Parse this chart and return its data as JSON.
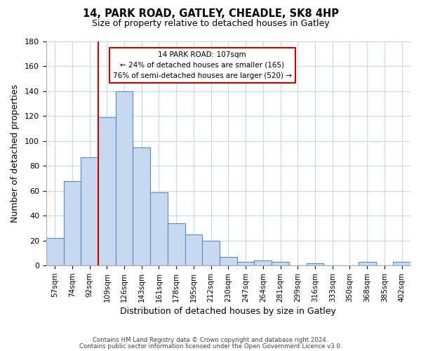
{
  "title_line1": "14, PARK ROAD, GATLEY, CHEADLE, SK8 4HP",
  "title_line2": "Size of property relative to detached houses in Gatley",
  "xlabel": "Distribution of detached houses by size in Gatley",
  "ylabel": "Number of detached properties",
  "bar_labels": [
    "57sqm",
    "74sqm",
    "92sqm",
    "109sqm",
    "126sqm",
    "143sqm",
    "161sqm",
    "178sqm",
    "195sqm",
    "212sqm",
    "230sqm",
    "247sqm",
    "264sqm",
    "281sqm",
    "299sqm",
    "316sqm",
    "333sqm",
    "350sqm",
    "368sqm",
    "385sqm",
    "402sqm"
  ],
  "bar_values": [
    22,
    68,
    87,
    119,
    140,
    95,
    59,
    34,
    25,
    20,
    7,
    3,
    4,
    3,
    0,
    2,
    0,
    0,
    3,
    0,
    3
  ],
  "bar_color": "#c6d9f0",
  "bar_edge_color": "#5a8ac6",
  "vline_index": 3,
  "vline_color": "#cc0000",
  "ylim": [
    0,
    180
  ],
  "yticks": [
    0,
    20,
    40,
    60,
    80,
    100,
    120,
    140,
    160,
    180
  ],
  "annotation_title": "14 PARK ROAD: 107sqm",
  "annotation_line1": "← 24% of detached houses are smaller (165)",
  "annotation_line2": "76% of semi-detached houses are larger (520) →",
  "annotation_box_color": "#ffffff",
  "annotation_box_edge": "#cc0000",
  "footer_line1": "Contains HM Land Registry data © Crown copyright and database right 2024.",
  "footer_line2": "Contains public sector information licensed under the Open Government Licence v3.0.",
  "background_color": "#ffffff",
  "grid_color": "#c8d8ec"
}
